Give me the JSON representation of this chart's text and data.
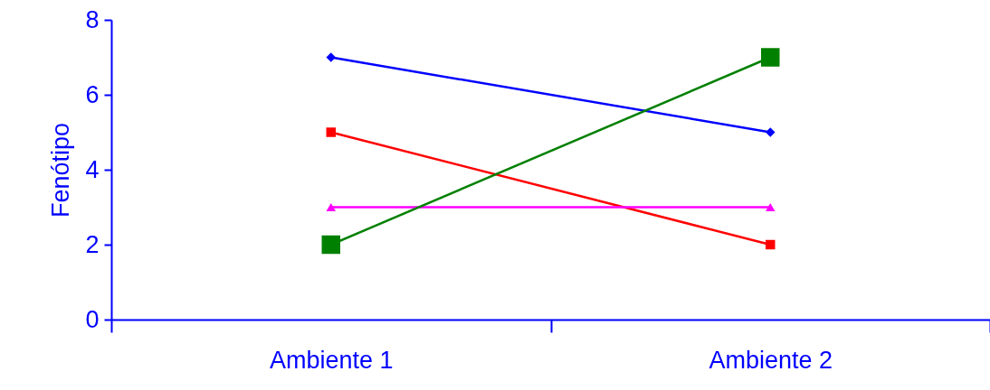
{
  "chart_data": {
    "type": "line",
    "ylabel": "Fenótipo",
    "categories": [
      "Ambiente 1",
      "Ambiente 2"
    ],
    "series": [
      {
        "color": "#0000ff",
        "values": [
          7,
          5
        ],
        "marker": "diamond"
      },
      {
        "color": "#ff0000",
        "values": [
          5,
          2
        ],
        "marker": "square"
      },
      {
        "color": "#ff00ff",
        "values": [
          3,
          3
        ],
        "marker": "triangle"
      },
      {
        "color": "#008000",
        "values": [
          2,
          7
        ],
        "marker": "square"
      }
    ],
    "ylim": [
      0,
      8
    ],
    "yticks": [
      0,
      2,
      4,
      6,
      8
    ],
    "grid": false,
    "legend": false,
    "line_style": "solid"
  }
}
